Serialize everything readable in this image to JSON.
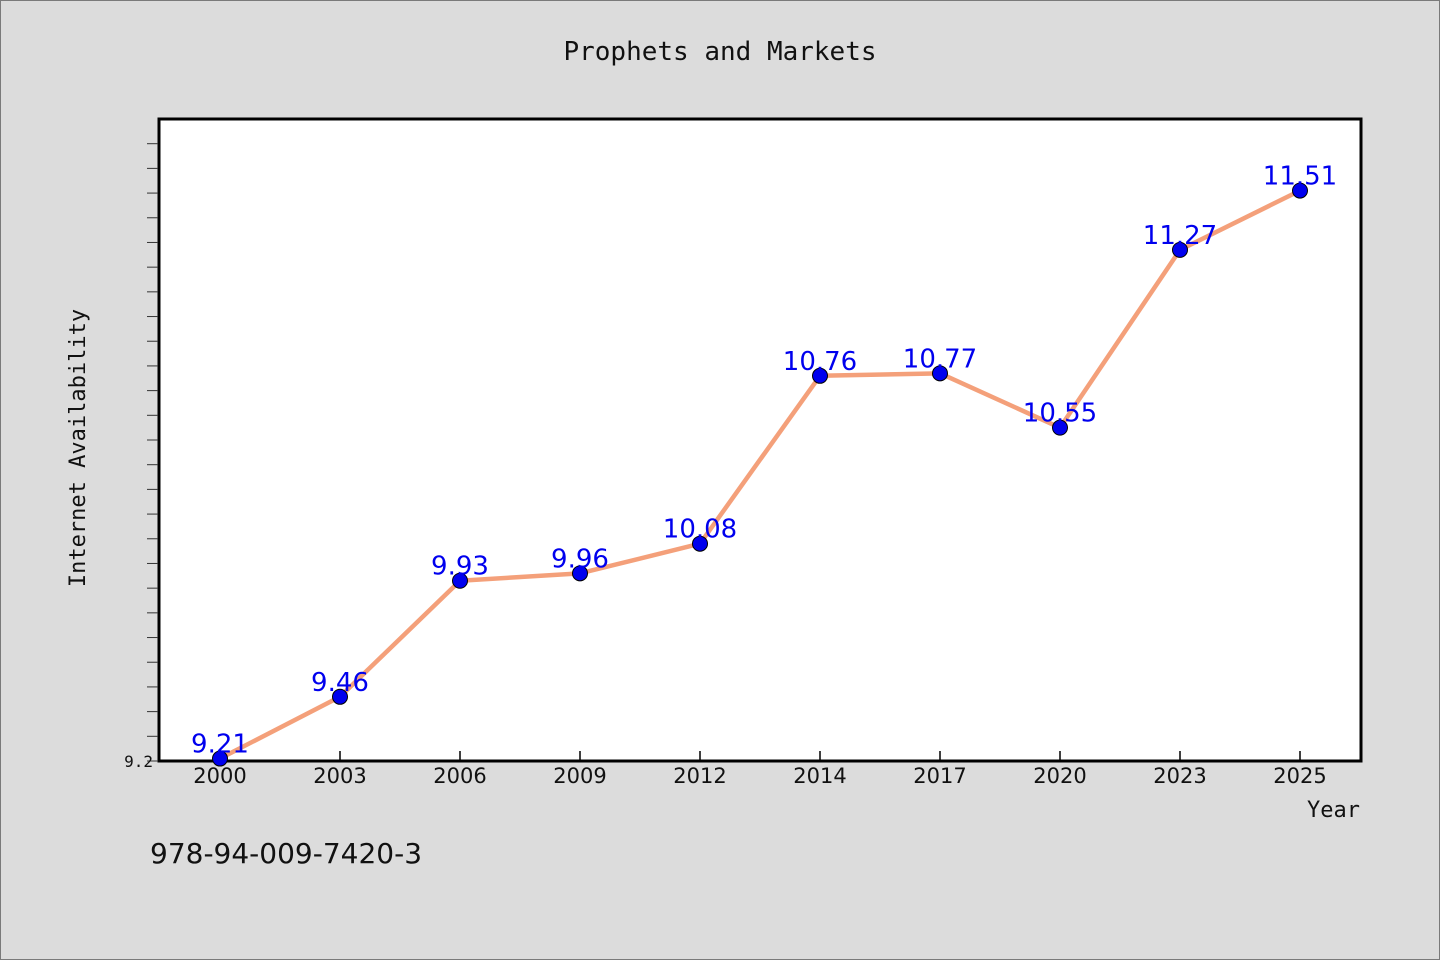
{
  "chart_data": {
    "type": "line",
    "title": "Prophets and Markets",
    "xlabel": "Year",
    "ylabel": "Internet Availability",
    "categories": [
      "2000",
      "2003",
      "2006",
      "2009",
      "2012",
      "2014",
      "2017",
      "2020",
      "2023",
      "2025"
    ],
    "series": [
      {
        "values": [
          9.21,
          9.46,
          9.93,
          9.96,
          10.08,
          10.76,
          10.77,
          10.55,
          11.27,
          11.51
        ]
      }
    ],
    "data_labels": [
      "9.21",
      "9.46",
      "9.93",
      "9.96",
      "10.08",
      "10.76",
      "10.77",
      "10.55",
      "11.27",
      "11.51"
    ],
    "y_tick_labels": [
      "9.2"
    ],
    "ylim": [
      9.2,
      11.8
    ],
    "grid": false,
    "colors": {
      "line": "#f4a07a",
      "marker": "#0000ee",
      "label": "#0000ee",
      "plot_bg": "#ffffff",
      "page_bg": "#dcdcdc"
    }
  },
  "footer": {
    "isbn": "978-94-009-7420-3"
  }
}
